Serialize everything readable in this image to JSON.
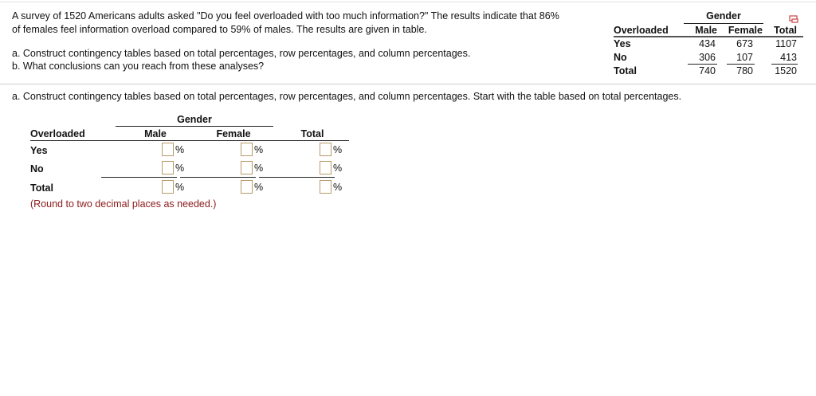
{
  "problem": {
    "line1": "A survey of 1520 Americans adults asked \"Do you feel overloaded with too much information?\" The results indicate that 86%",
    "line2": "of females feel information overload compared to 59% of males. The results are given in table.",
    "part_a": "a. Construct contingency tables based on total percentages, row percentages, and column percentages.",
    "part_b": "b. What conclusions can you reach from these analyses?"
  },
  "given_table": {
    "group_header": "Gender",
    "row_header": "Overloaded",
    "columns": [
      "Male",
      "Female",
      "Total"
    ],
    "rows": [
      {
        "label": "Yes",
        "values": [
          "434",
          "673",
          "1107"
        ]
      },
      {
        "label": "No",
        "values": [
          "306",
          "107",
          "413"
        ]
      },
      {
        "label": "Total",
        "values": [
          "740",
          "780",
          "1520"
        ]
      }
    ],
    "popup_icon": "popout-icon"
  },
  "question": {
    "instruction": "a. Construct contingency tables based on total percentages, row percentages, and column percentages. Start with the table based on total percentages."
  },
  "answer_table": {
    "group_header": "Gender",
    "row_header": "Overloaded",
    "columns": [
      "Male",
      "Female",
      "Total"
    ],
    "rows": [
      {
        "label": "Yes",
        "values": [
          "",
          "",
          ""
        ]
      },
      {
        "label": "No",
        "values": [
          "",
          "",
          ""
        ]
      },
      {
        "label": "Total",
        "values": [
          "",
          "",
          ""
        ]
      }
    ],
    "unit": "%",
    "note": "(Round to two decimal places as needed.)"
  }
}
